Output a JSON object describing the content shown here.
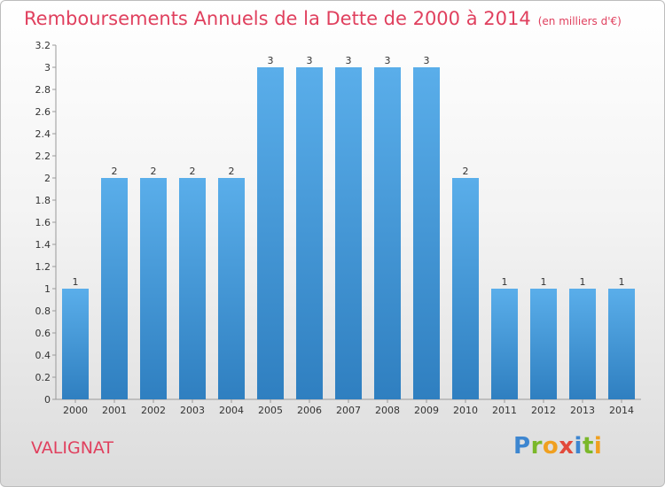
{
  "title": "Remboursements Annuels de la Dette de 2000 à 2014",
  "unit": "(en milliers d'€)",
  "commune": "VALIGNAT",
  "logo": "Proxiti",
  "colors": {
    "bar": "#5aaeea",
    "bar_dark": "#2f7fc0",
    "title": "#e0405e"
  },
  "chart_data": {
    "type": "bar",
    "title": "Remboursements Annuels de la Dette de 2000 à 2014",
    "categories": [
      "2000",
      "2001",
      "2002",
      "2003",
      "2004",
      "2005",
      "2006",
      "2007",
      "2008",
      "2009",
      "2010",
      "2011",
      "2012",
      "2013",
      "2014"
    ],
    "values": [
      1,
      2,
      2,
      2,
      2,
      3,
      3,
      3,
      3,
      3,
      2,
      1,
      1,
      1,
      1
    ],
    "data_labels": [
      "1",
      "2",
      "2",
      "2",
      "2",
      "3",
      "3",
      "3",
      "3",
      "3",
      "2",
      "1",
      "1",
      "1",
      "1"
    ],
    "ylim": [
      0,
      3.2
    ],
    "yticks": [
      "0",
      "0.2",
      "0.4",
      "0.6",
      "0.8",
      "1",
      "1.2",
      "1.4",
      "1.6",
      "1.8",
      "2",
      "2.2",
      "2.4",
      "2.6",
      "2.8",
      "3",
      "3.2"
    ],
    "grid": false,
    "legend": "none"
  }
}
